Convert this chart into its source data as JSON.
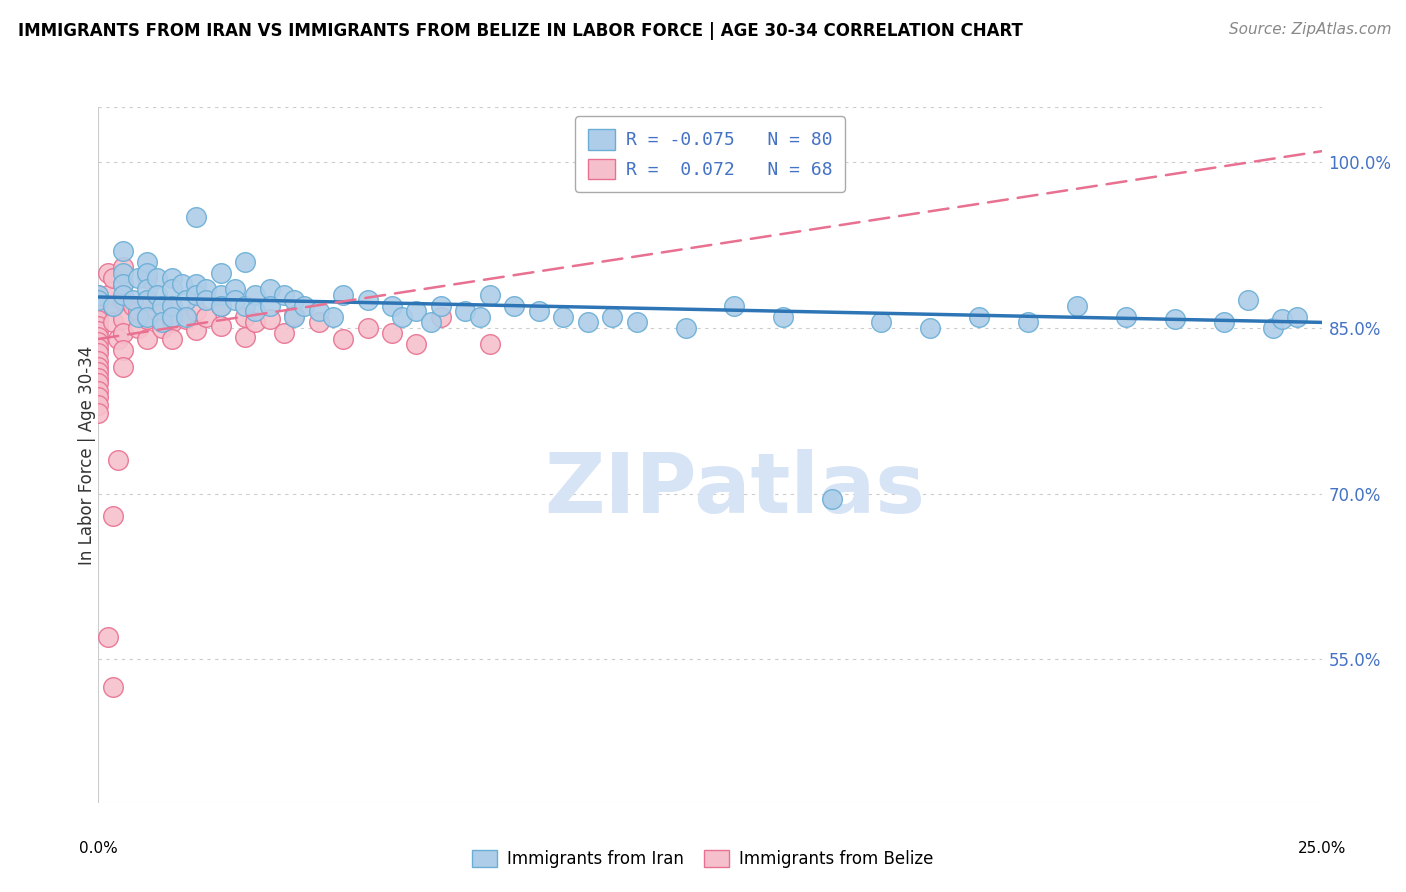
{
  "title": "IMMIGRANTS FROM IRAN VS IMMIGRANTS FROM BELIZE IN LABOR FORCE | AGE 30-34 CORRELATION CHART",
  "source": "Source: ZipAtlas.com",
  "ylabel": "In Labor Force | Age 30-34",
  "x_min": 0.0,
  "x_max": 0.25,
  "y_min": 0.42,
  "y_max": 1.05,
  "y_ticks": [
    0.55,
    0.7,
    0.85,
    1.0
  ],
  "y_tick_labels": [
    "55.0%",
    "70.0%",
    "85.0%",
    "100.0%"
  ],
  "iran_R": -0.075,
  "iran_N": 80,
  "belize_R": 0.072,
  "belize_N": 68,
  "iran_color": "#aecde8",
  "iran_edge_color": "#6aaed6",
  "iran_line_color": "#2e75b6",
  "belize_color": "#f5c0cc",
  "belize_edge_color": "#e87090",
  "belize_line_color": "#e87090",
  "watermark_color": "#d6e4f5",
  "iran_scatter_x": [
    0.0,
    0.0,
    0.003,
    0.005,
    0.005,
    0.005,
    0.005,
    0.007,
    0.008,
    0.008,
    0.01,
    0.01,
    0.01,
    0.01,
    0.01,
    0.012,
    0.012,
    0.013,
    0.013,
    0.015,
    0.015,
    0.015,
    0.015,
    0.017,
    0.018,
    0.018,
    0.02,
    0.02,
    0.02,
    0.022,
    0.022,
    0.025,
    0.025,
    0.025,
    0.028,
    0.028,
    0.03,
    0.03,
    0.032,
    0.032,
    0.035,
    0.035,
    0.038,
    0.04,
    0.04,
    0.042,
    0.045,
    0.048,
    0.05,
    0.055,
    0.06,
    0.062,
    0.065,
    0.068,
    0.07,
    0.075,
    0.078,
    0.08,
    0.085,
    0.09,
    0.095,
    0.1,
    0.105,
    0.11,
    0.12,
    0.13,
    0.14,
    0.15,
    0.16,
    0.17,
    0.18,
    0.19,
    0.2,
    0.21,
    0.22,
    0.23,
    0.235,
    0.24,
    0.242,
    0.245
  ],
  "iran_scatter_y": [
    0.88,
    0.875,
    0.87,
    0.92,
    0.9,
    0.89,
    0.88,
    0.875,
    0.895,
    0.86,
    0.91,
    0.9,
    0.885,
    0.875,
    0.86,
    0.895,
    0.88,
    0.87,
    0.855,
    0.895,
    0.885,
    0.87,
    0.86,
    0.89,
    0.875,
    0.86,
    0.95,
    0.89,
    0.88,
    0.885,
    0.875,
    0.9,
    0.88,
    0.87,
    0.885,
    0.875,
    0.91,
    0.87,
    0.88,
    0.865,
    0.885,
    0.87,
    0.88,
    0.875,
    0.86,
    0.87,
    0.865,
    0.86,
    0.88,
    0.875,
    0.87,
    0.86,
    0.865,
    0.855,
    0.87,
    0.865,
    0.86,
    0.88,
    0.87,
    0.865,
    0.86,
    0.855,
    0.86,
    0.855,
    0.85,
    0.87,
    0.86,
    0.695,
    0.855,
    0.85,
    0.86,
    0.855,
    0.87,
    0.86,
    0.858,
    0.855,
    0.875,
    0.85,
    0.858,
    0.86
  ],
  "belize_scatter_x": [
    0.0,
    0.0,
    0.0,
    0.0,
    0.0,
    0.0,
    0.0,
    0.0,
    0.0,
    0.0,
    0.0,
    0.0,
    0.0,
    0.0,
    0.0,
    0.0,
    0.0,
    0.0,
    0.0,
    0.0,
    0.002,
    0.002,
    0.003,
    0.003,
    0.003,
    0.004,
    0.005,
    0.005,
    0.005,
    0.005,
    0.005,
    0.005,
    0.005,
    0.007,
    0.008,
    0.008,
    0.01,
    0.01,
    0.01,
    0.01,
    0.012,
    0.013,
    0.015,
    0.015,
    0.015,
    0.018,
    0.02,
    0.02,
    0.022,
    0.025,
    0.025,
    0.03,
    0.03,
    0.032,
    0.035,
    0.038,
    0.04,
    0.045,
    0.05,
    0.055,
    0.06,
    0.065,
    0.07,
    0.08,
    0.002,
    0.003,
    0.004,
    0.003
  ],
  "belize_scatter_y": [
    0.88,
    0.875,
    0.868,
    0.862,
    0.857,
    0.852,
    0.847,
    0.842,
    0.837,
    0.832,
    0.827,
    0.82,
    0.815,
    0.81,
    0.805,
    0.8,
    0.793,
    0.787,
    0.78,
    0.773,
    0.9,
    0.88,
    0.895,
    0.87,
    0.855,
    0.84,
    0.905,
    0.89,
    0.875,
    0.858,
    0.845,
    0.83,
    0.815,
    0.87,
    0.865,
    0.85,
    0.895,
    0.875,
    0.858,
    0.84,
    0.865,
    0.85,
    0.87,
    0.855,
    0.84,
    0.858,
    0.865,
    0.848,
    0.86,
    0.87,
    0.852,
    0.86,
    0.842,
    0.855,
    0.858,
    0.845,
    0.862,
    0.855,
    0.84,
    0.85,
    0.845,
    0.835,
    0.86,
    0.835,
    0.57,
    0.525,
    0.73,
    0.68
  ],
  "iran_line_x0": 0.0,
  "iran_line_x1": 0.25,
  "iran_line_y0": 0.878,
  "iran_line_y1": 0.855,
  "belize_line_x0": 0.0,
  "belize_line_x1": 0.25,
  "belize_line_y0": 0.84,
  "belize_line_y1": 1.01
}
